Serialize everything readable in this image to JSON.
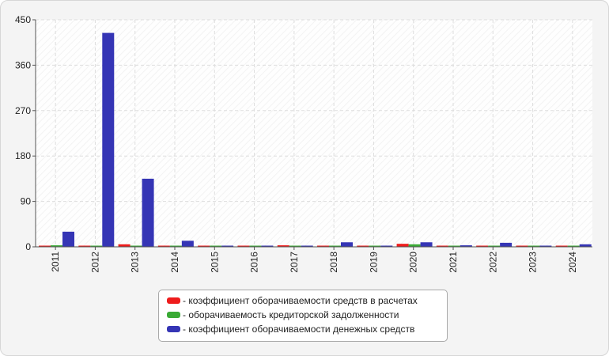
{
  "chart_data": {
    "type": "bar",
    "title": "",
    "xlabel": "",
    "ylabel": "",
    "ylim": [
      0,
      450
    ],
    "yticks": [
      0,
      90,
      180,
      270,
      360,
      450
    ],
    "grid": true,
    "legend_position": "bottom",
    "categories": [
      "2011",
      "2012",
      "2013",
      "2014",
      "2015",
      "2016",
      "2017",
      "2018",
      "2019",
      "2020",
      "2021",
      "2022",
      "2023",
      "2024"
    ],
    "series": [
      {
        "name": "- коэффициент оборачиваемости средств в расчетах",
        "color": "#ee1c1c",
        "values": [
          1,
          1,
          5,
          1,
          1,
          1,
          3,
          1,
          1,
          6,
          1,
          1,
          1,
          1
        ]
      },
      {
        "name": "- оборачиваемость кредиторской задолженности",
        "color": "#3aaa35",
        "values": [
          3,
          1,
          1,
          1,
          1,
          1,
          1,
          1,
          1,
          5,
          1,
          1,
          1,
          1
        ]
      },
      {
        "name": "- коэффициент оборачиваемости денежных средств",
        "color": "#3535b5",
        "values": [
          30,
          424,
          135,
          12,
          1,
          1,
          1,
          9,
          1,
          9,
          3,
          8,
          1,
          5
        ]
      }
    ]
  }
}
